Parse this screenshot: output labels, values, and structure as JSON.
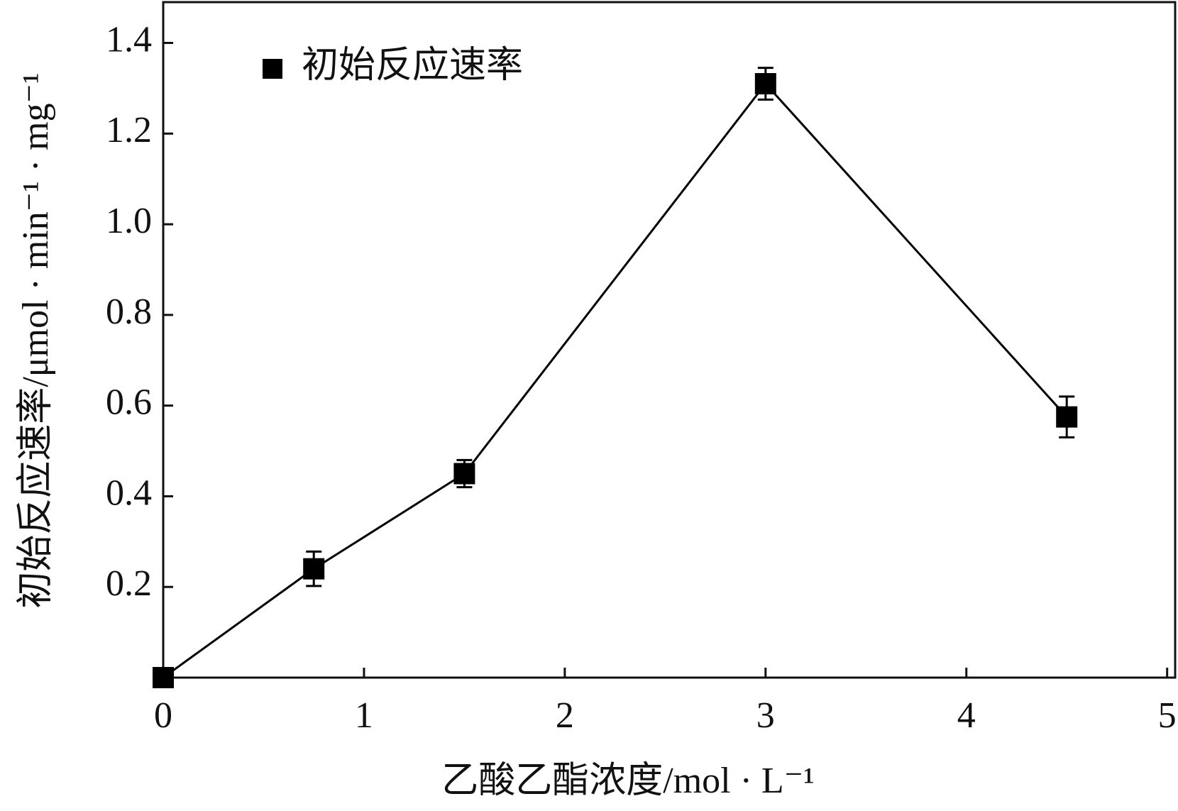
{
  "chart_data": {
    "type": "line",
    "x_label": "乙酸乙酯浓度/mol · L⁻¹",
    "y_label": "初始反应速率/μmol · min⁻¹ · mg⁻¹",
    "x": [
      0,
      0.75,
      1.5,
      3,
      4.5
    ],
    "series": [
      {
        "name": "初始反应速率",
        "color": "#000000",
        "values": [
          0,
          0.24,
          0.45,
          1.31,
          0.575
        ],
        "errors": [
          0,
          0.038,
          0.03,
          0.035,
          0.045
        ]
      }
    ],
    "xlim": [
      0,
      5.04
    ],
    "xticks": [
      0,
      1,
      2,
      3,
      4,
      5
    ],
    "ylim": [
      0,
      1.49
    ],
    "yticks": [
      0.2,
      0.4,
      0.6,
      0.8,
      {
        "value": 1,
        "label": "1.0"
      },
      1.2,
      1.4
    ],
    "legend": "upper left",
    "grid": false
  }
}
